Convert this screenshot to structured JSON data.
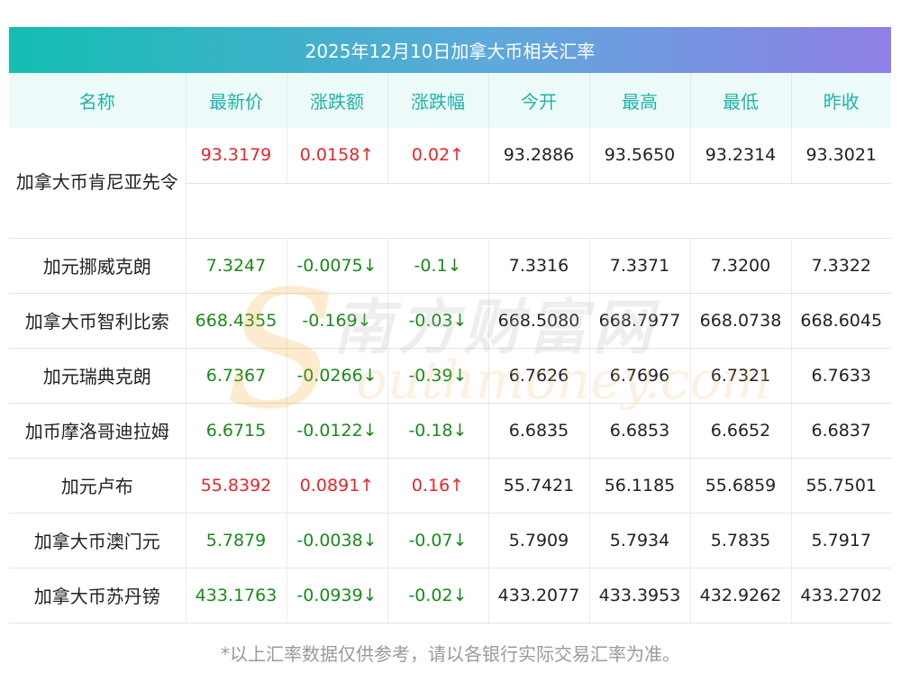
{
  "title": "2025年12月10日加拿大币相关汇率",
  "headers": [
    "名称",
    "最新价",
    "涨跌额",
    "涨跌幅",
    "今开",
    "最高",
    "最低",
    "昨收"
  ],
  "rows": [
    {
      "name": "加拿大币肯尼亚先令",
      "latest": "93.3179",
      "change": "0.0158↑",
      "pct": "0.02↑",
      "open": "93.2886",
      "high": "93.5650",
      "low": "93.2314",
      "prev": "93.3021",
      "dir": "up"
    },
    {
      "name": "加元挪威克朗",
      "latest": "7.3247",
      "change": "-0.0075↓",
      "pct": "-0.1↓",
      "open": "7.3316",
      "high": "7.3371",
      "low": "7.3200",
      "prev": "7.3322",
      "dir": "down"
    },
    {
      "name": "加拿大币智利比索",
      "latest": "668.4355",
      "change": "-0.169↓",
      "pct": "-0.03↓",
      "open": "668.5080",
      "high": "668.7977",
      "low": "668.0738",
      "prev": "668.6045",
      "dir": "down"
    },
    {
      "name": "加元瑞典克朗",
      "latest": "6.7367",
      "change": "-0.0266↓",
      "pct": "-0.39↓",
      "open": "6.7626",
      "high": "6.7696",
      "low": "6.7321",
      "prev": "6.7633",
      "dir": "down"
    },
    {
      "name": "加币摩洛哥迪拉姆",
      "latest": "6.6715",
      "change": "-0.0122↓",
      "pct": "-0.18↓",
      "open": "6.6835",
      "high": "6.6853",
      "low": "6.6652",
      "prev": "6.6837",
      "dir": "down"
    },
    {
      "name": "加元卢布",
      "latest": "55.8392",
      "change": "0.0891↑",
      "pct": "0.16↑",
      "open": "55.7421",
      "high": "56.1185",
      "low": "55.6859",
      "prev": "55.7501",
      "dir": "up"
    },
    {
      "name": "加拿大币澳门元",
      "latest": "5.7879",
      "change": "-0.0038↓",
      "pct": "-0.07↓",
      "open": "5.7909",
      "high": "5.7934",
      "low": "5.7835",
      "prev": "5.7917",
      "dir": "down"
    },
    {
      "name": "加拿大币苏丹镑",
      "latest": "433.1763",
      "change": "-0.0939↓",
      "pct": "-0.02↓",
      "open": "433.2077",
      "high": "433.3953",
      "low": "432.9262",
      "prev": "433.2702",
      "dir": "down"
    }
  ],
  "watermark": {
    "letter": "S",
    "cn": "南方财富网",
    "en": "outhmoney.com"
  },
  "colors": {
    "up": "#e8242b",
    "down": "#1a8a1a",
    "header_text": "#1fb3a9"
  },
  "note": "*以上汇率数据仅供参考，请以各银行实际交易汇率为准。"
}
